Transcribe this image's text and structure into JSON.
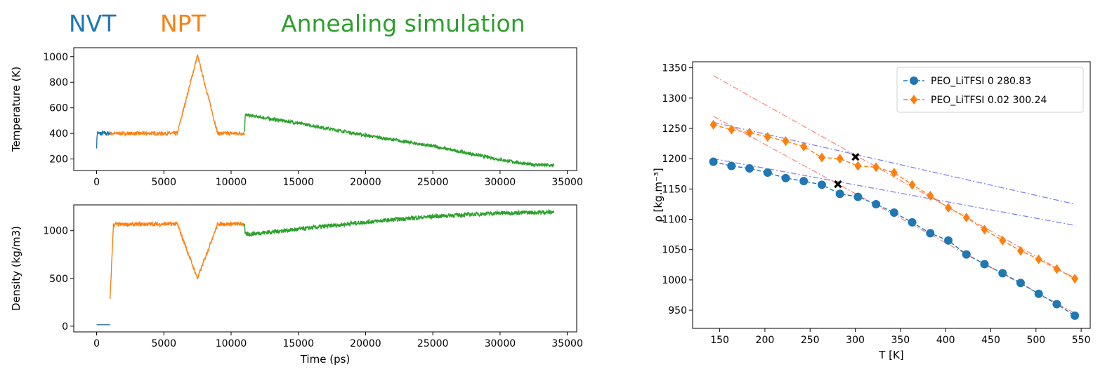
{
  "header": {
    "phases": [
      {
        "label": "NVT",
        "color": "#1f77b4"
      },
      {
        "label": "NPT",
        "color": "#ff7f0e"
      },
      {
        "label": "Annealing simulation",
        "color": "#2ca02c"
      }
    ]
  },
  "chart_data": [
    {
      "id": "temperature",
      "type": "line",
      "xlabel": "",
      "ylabel": "Temperature (K)",
      "xlim": [
        -1700,
        35700
      ],
      "ylim": [
        110,
        1070
      ],
      "xticks": [
        0,
        5000,
        10000,
        15000,
        20000,
        25000,
        30000,
        35000
      ],
      "yticks": [
        200,
        400,
        600,
        800,
        1000
      ],
      "series": [
        {
          "color": "#1f77b4",
          "noise": 18,
          "x": [
            0,
            50,
            150,
            300,
            1000
          ],
          "y": [
            300,
            410,
            400,
            400,
            400
          ]
        },
        {
          "color": "#ff7f0e",
          "noise": 14,
          "x": [
            1000,
            6000,
            7500,
            9000,
            11000
          ],
          "y": [
            400,
            400,
            1010,
            400,
            400
          ]
        },
        {
          "color": "#2ca02c",
          "noise": 12,
          "x": [
            11000,
            11050,
            15000,
            20000,
            25000,
            30000,
            32000,
            34000
          ],
          "y": [
            420,
            545,
            480,
            385,
            300,
            195,
            160,
            148
          ]
        }
      ]
    },
    {
      "id": "density",
      "type": "line",
      "xlabel": "Time (ps)",
      "ylabel": "Density (kg/m3)",
      "xlim": [
        -1700,
        35700
      ],
      "ylim": [
        -60,
        1270
      ],
      "xticks": [
        0,
        5000,
        10000,
        15000,
        20000,
        25000,
        30000,
        35000
      ],
      "yticks": [
        0,
        500,
        1000
      ],
      "series": [
        {
          "color": "#1f77b4",
          "noise": 0,
          "x": [
            0,
            1000
          ],
          "y": [
            15,
            15
          ]
        },
        {
          "color": "#ff7f0e",
          "noise": 20,
          "x": [
            1000,
            1100,
            1250,
            1400,
            6000,
            7500,
            9000,
            11000
          ],
          "y": [
            280,
            600,
            1060,
            1065,
            1070,
            500,
            1070,
            1070
          ]
        },
        {
          "color": "#2ca02c",
          "noise": 22,
          "x": [
            11000,
            11050,
            15000,
            20000,
            25000,
            30000,
            34000
          ],
          "y": [
            1060,
            960,
            1015,
            1090,
            1150,
            1185,
            1195
          ]
        }
      ]
    },
    {
      "id": "density-vs-temperature",
      "type": "line",
      "xlabel": "T [K]",
      "ylabel": "ρ [kg.m⁻³]",
      "xlim": [
        120,
        560
      ],
      "ylim": [
        920,
        1360
      ],
      "xticks": [
        150,
        200,
        250,
        300,
        350,
        400,
        450,
        500,
        550
      ],
      "yticks": [
        950,
        1000,
        1050,
        1100,
        1150,
        1200,
        1250,
        1300,
        1350
      ],
      "legend": "top-right",
      "series": [
        {
          "name": "PEO_LiTFSI 0 280.83",
          "color": "#1f77b4",
          "marker": "circle",
          "x": [
            143,
            163,
            183,
            203,
            223,
            243,
            263,
            283,
            303,
            323,
            343,
            363,
            383,
            403,
            423,
            443,
            463,
            483,
            503,
            523,
            543
          ],
          "y": [
            1195,
            1188,
            1184,
            1177,
            1168,
            1163,
            1157,
            1142,
            1137,
            1125,
            1111,
            1095,
            1077,
            1065,
            1042,
            1026,
            1011,
            995,
            977,
            960,
            941
          ]
        },
        {
          "name": "PEO_LiTFSI 0.02 300.24",
          "color": "#ff7f0e",
          "marker": "diamond",
          "x": [
            143,
            163,
            183,
            203,
            223,
            243,
            263,
            283,
            303,
            323,
            343,
            363,
            383,
            403,
            423,
            443,
            463,
            483,
            503,
            523,
            543
          ],
          "y": [
            1256,
            1248,
            1243,
            1236,
            1229,
            1220,
            1202,
            1200,
            1188,
            1186,
            1177,
            1157,
            1139,
            1119,
            1103,
            1083,
            1065,
            1048,
            1034,
            1018,
            1002
          ]
        }
      ],
      "fit_lines": [
        {
          "color": "#8080ff",
          "x": [
            143,
            543
          ],
          "y": [
            1200,
            1090
          ]
        },
        {
          "color": "#8080ff",
          "x": [
            143,
            543
          ],
          "y": [
            1260,
            1125
          ]
        },
        {
          "color": "#ff8a80",
          "x": [
            143,
            543
          ],
          "y": [
            1270,
            945
          ]
        },
        {
          "color": "#ff8a80",
          "x": [
            143,
            543
          ],
          "y": [
            1337,
            1003
          ]
        }
      ],
      "intersections": [
        {
          "x": 280.83,
          "y": 1158
        },
        {
          "x": 300.24,
          "y": 1203
        }
      ]
    }
  ]
}
